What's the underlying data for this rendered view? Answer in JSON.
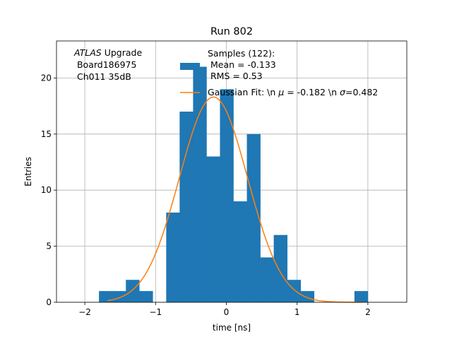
{
  "chart_data": {
    "type": "bar",
    "title": "Run 802",
    "xlabel": "time [ns]",
    "ylabel": "Entries",
    "xlim": [
      -2.4,
      2.55
    ],
    "ylim": [
      0,
      23.3
    ],
    "grid": true,
    "xticks": [
      -2,
      -1,
      0,
      1,
      2
    ],
    "xtick_labels": [
      "−2",
      "−1",
      "0",
      "1",
      "2"
    ],
    "yticks": [
      0,
      5,
      10,
      15,
      20
    ],
    "ytick_labels": [
      "0",
      "5",
      "10",
      "15",
      "20"
    ],
    "bin_edges": [
      -1.8,
      -1.61,
      -1.42,
      -1.23,
      -1.04,
      -0.85,
      -0.66,
      -0.47,
      -0.28,
      -0.09,
      0.1,
      0.29,
      0.48,
      0.67,
      0.86,
      1.05,
      1.24,
      1.43,
      1.62,
      1.81,
      2.0
    ],
    "counts": [
      1,
      1,
      2,
      1,
      0,
      8,
      17,
      21,
      13,
      19,
      9,
      15,
      4,
      6,
      2,
      1,
      0,
      0,
      0,
      1
    ],
    "bar_color": "#1f77b4",
    "fit_color": "#ff7f0e",
    "gauss": {
      "mu": -0.182,
      "sigma": 0.482,
      "amplitude": 18.3,
      "x_start": -1.68,
      "x_end": 1.92
    },
    "annotation_lines": [
      {
        "italic": "ATLAS",
        "text": " Upgrade"
      },
      {
        "italic": "",
        "text": " Board186975"
      },
      {
        "italic": "",
        "text": " Ch011 35dB"
      }
    ],
    "legend": {
      "placement": "top-right",
      "samples_lines": [
        "Samples (122):",
        " Mean = -0.133",
        " RMS = 0.53"
      ],
      "fit_label_parts": [
        "Gaussian Fit: \\n ",
        "μ",
        " = -0.182 \\n ",
        "σ",
        "=0.482"
      ]
    }
  }
}
